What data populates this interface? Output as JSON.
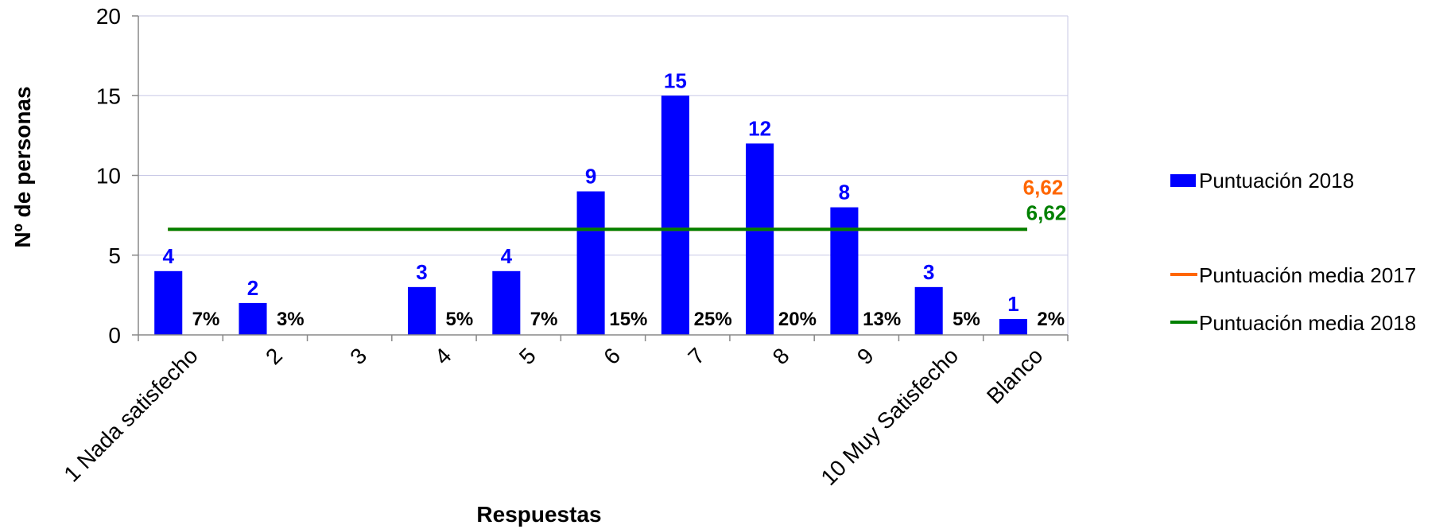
{
  "chart_data": {
    "type": "bar",
    "categories": [
      "1 Nada satisfecho",
      "2",
      "3",
      "4",
      "5",
      "6",
      "7",
      "8",
      "9",
      "10 Muy Satisfecho",
      "Blanco"
    ],
    "series": [
      {
        "name": "Puntuación 2018",
        "values": [
          4,
          2,
          0,
          3,
          4,
          9,
          15,
          12,
          8,
          3,
          1
        ],
        "value_labels": [
          "4",
          "2",
          "",
          "3",
          "4",
          "9",
          "15",
          "12",
          "8",
          "3",
          "1"
        ],
        "percent_labels": [
          "7%",
          "3%",
          "",
          "5%",
          "7%",
          "15%",
          "25%",
          "20%",
          "13%",
          "5%",
          "2%"
        ],
        "color": "#0000ff"
      }
    ],
    "reference_lines": [
      {
        "name": "Puntuación media 2017",
        "value": 6.62,
        "label": "6,62",
        "color": "#ff6600"
      },
      {
        "name": "Puntuación media 2018",
        "value": 6.62,
        "label": "6,62",
        "color": "#008000"
      }
    ],
    "xlabel": "Respuestas",
    "ylabel": "Nº de personas",
    "ylim": [
      0,
      20
    ],
    "yticks": [
      "0",
      "5",
      "10",
      "15",
      "20"
    ],
    "ytick_values": [
      0,
      5,
      10,
      15,
      20
    ],
    "grid": true,
    "legend_position": "right",
    "colors": {
      "bar": "#0000ff",
      "mean2017": "#ff6600",
      "mean2018": "#008000",
      "grid": "#c8c8e6"
    }
  }
}
